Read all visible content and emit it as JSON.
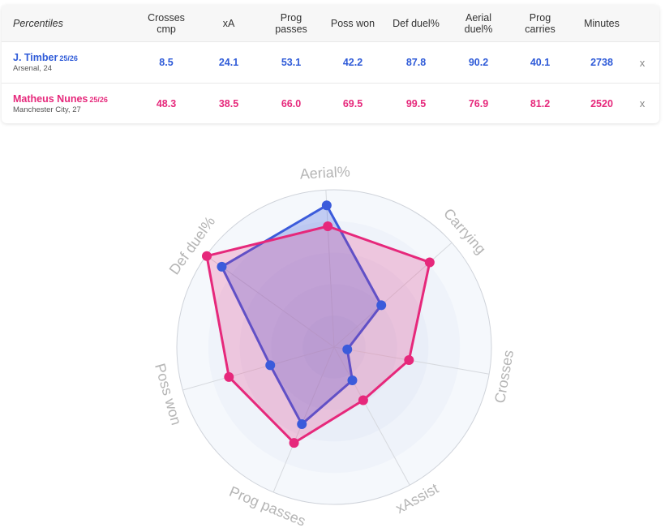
{
  "table": {
    "header_label": "Percentiles",
    "columns": [
      "Crosses\ncmp",
      "xA",
      "Prog\npasses",
      "Poss won",
      "Def duel%",
      "Aerial\nduel%",
      "Prog\ncarries",
      "Minutes"
    ],
    "players": [
      {
        "name": "J. Timber",
        "season": "25/26",
        "club": "Arsenal, 24",
        "values": [
          "8.5",
          "24.1",
          "53.1",
          "42.2",
          "87.8",
          "90.2",
          "40.1",
          "2738"
        ],
        "color": "#2f5bd8",
        "remove": "x"
      },
      {
        "name": "Matheus Nunes",
        "season": "25/26",
        "club": "Manchester City, 27",
        "values": [
          "48.3",
          "38.5",
          "66.0",
          "69.5",
          "99.5",
          "76.9",
          "81.2",
          "2520"
        ],
        "color": "#e6287b",
        "remove": "x"
      }
    ]
  },
  "chart_data": {
    "type": "radar",
    "axes": [
      "Aerial%",
      "Carrying",
      "Crosses",
      "xAssist",
      "Prog passes",
      "Poss won",
      "Def duel%"
    ],
    "range": [
      0,
      100
    ],
    "grid": true,
    "series": [
      {
        "name": "J. Timber",
        "color": "#3b5bdb",
        "values": [
          90.2,
          40.1,
          8.5,
          24.1,
          53.1,
          42.2,
          87.8
        ]
      },
      {
        "name": "Matheus Nunes",
        "color": "#e6287b",
        "values": [
          76.9,
          81.2,
          48.3,
          38.5,
          66.0,
          69.5,
          99.5
        ]
      }
    ]
  }
}
